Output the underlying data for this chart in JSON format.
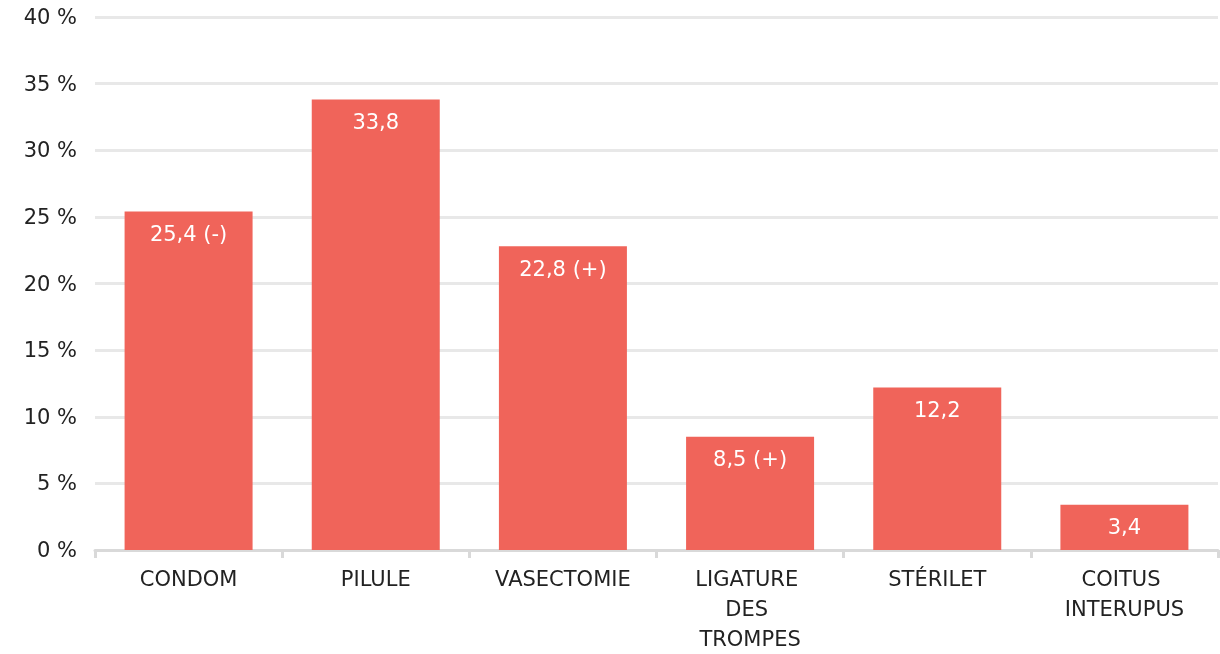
{
  "chart_data": {
    "type": "bar",
    "categories": [
      "CONDOM",
      "PILULE",
      "VASECTOMIE",
      "LIGATURE DES TROMPES",
      "STÉRILET",
      "COITUS INTERUPUS"
    ],
    "values": [
      25.4,
      33.8,
      22.8,
      8.5,
      12.2,
      3.4
    ],
    "value_labels": [
      "25,4 (-)",
      "33,8",
      "22,8 (+)",
      "8,5 (+)",
      "12,2",
      "3,4"
    ],
    "color": "#f0645a",
    "ylim": [
      0,
      40
    ],
    "yticks": [
      {
        "value": 0,
        "label": "0 %"
      },
      {
        "value": 5,
        "label": "5 %"
      },
      {
        "value": 10,
        "label": "10 %"
      },
      {
        "value": 15,
        "label": "15 %"
      },
      {
        "value": 20,
        "label": "20 %"
      },
      {
        "value": 25,
        "label": "25 %"
      },
      {
        "value": 30,
        "label": "30 %"
      },
      {
        "value": 35,
        "label": "35 %"
      },
      {
        "value": 40,
        "label": "40 %"
      }
    ],
    "grid": "y"
  }
}
